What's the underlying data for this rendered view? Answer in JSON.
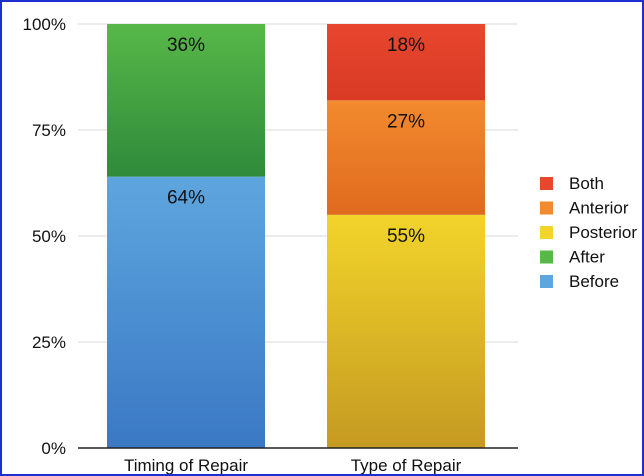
{
  "chart_data": {
    "type": "bar",
    "stacked": true,
    "categories": [
      "Timing of Repair",
      "Type of Repair"
    ],
    "ylim": [
      0,
      100
    ],
    "yticks": [
      "0%",
      "25%",
      "50%",
      "75%",
      "100%"
    ],
    "grid": true,
    "legend_position": "right",
    "series": [
      {
        "name": "Before",
        "values": [
          64,
          0
        ],
        "labels": [
          "64%",
          ""
        ],
        "color": "#3a78c4",
        "color_top": "#5ea6df"
      },
      {
        "name": "After",
        "values": [
          36,
          0
        ],
        "labels": [
          "36%",
          ""
        ],
        "color": "#2f8a3a",
        "color_top": "#57b848"
      },
      {
        "name": "Posterior",
        "values": [
          0,
          55
        ],
        "labels": [
          "",
          "55%"
        ],
        "color": "#c59a22",
        "color_top": "#f2d42a"
      },
      {
        "name": "Anterior",
        "values": [
          0,
          27
        ],
        "labels": [
          "",
          "27%"
        ],
        "color": "#e06a1e",
        "color_top": "#f28a2e"
      },
      {
        "name": "Both",
        "values": [
          0,
          18
        ],
        "labels": [
          "",
          "18%"
        ],
        "color": "#d83a24",
        "color_top": "#e8462e"
      }
    ],
    "legend_order": [
      "Both",
      "Anterior",
      "Posterior",
      "After",
      "Before"
    ]
  }
}
